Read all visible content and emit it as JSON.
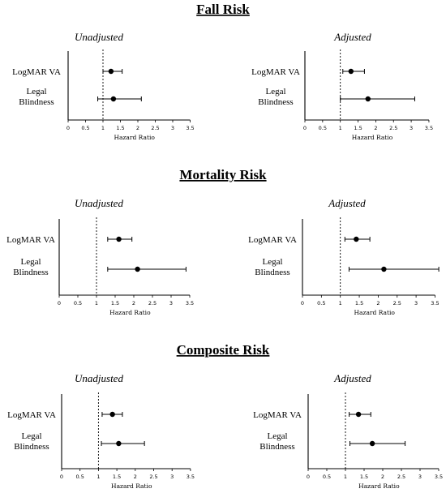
{
  "sections": [
    {
      "title": "Fall Risk"
    },
    {
      "title": "Mortality Risk"
    },
    {
      "title": "Composite Risk"
    }
  ],
  "chart_data": [
    {
      "type": "forest",
      "section": "Fall Risk",
      "title": "Unadjusted",
      "xlabel": "Hazard Ratio",
      "xlim": [
        0,
        3.5
      ],
      "ticks": [
        "0",
        "0.5",
        "1",
        "1.5",
        "2",
        "2.5",
        "3",
        "3.5"
      ],
      "reference_line": 1,
      "categories": [
        "LogMAR VA",
        "Legal Blindness"
      ],
      "estimates": [
        1.23,
        1.3
      ],
      "lower": [
        1.0,
        0.85
      ],
      "upper": [
        1.55,
        2.1
      ]
    },
    {
      "type": "forest",
      "section": "Fall Risk",
      "title": "Adjusted",
      "xlabel": "Hazard Ratio",
      "xlim": [
        0,
        3.5
      ],
      "ticks": [
        "0",
        "0.5",
        "1",
        "1.5",
        "2",
        "2.5",
        "3",
        "3.5"
      ],
      "reference_line": 1,
      "categories": [
        "LogMAR VA",
        "Legal Blindness"
      ],
      "estimates": [
        1.3,
        1.78
      ],
      "lower": [
        1.07,
        1.0
      ],
      "upper": [
        1.68,
        3.1
      ]
    },
    {
      "type": "forest",
      "section": "Mortality Risk",
      "title": "Unadjusted",
      "xlabel": "Hazard Ratio",
      "xlim": [
        0,
        3.5
      ],
      "ticks": [
        "0",
        "0.5",
        "1",
        "1.5",
        "2",
        "2.5",
        "3",
        "3.5"
      ],
      "reference_line": 1,
      "categories": [
        "LogMAR VA",
        "Legal Blindness"
      ],
      "estimates": [
        1.6,
        2.1
      ],
      "lower": [
        1.3,
        1.3
      ],
      "upper": [
        1.95,
        3.4
      ]
    },
    {
      "type": "forest",
      "section": "Mortality Risk",
      "title": "Adjusted",
      "xlabel": "Hazard Ratio",
      "xlim": [
        0,
        3.5
      ],
      "ticks": [
        "0",
        "0.5",
        "1",
        "1.5",
        "2",
        "2.5",
        "3",
        "3.5"
      ],
      "reference_line": 1,
      "categories": [
        "LogMAR VA",
        "Legal Blindness"
      ],
      "estimates": [
        1.42,
        2.15
      ],
      "lower": [
        1.12,
        1.23
      ],
      "upper": [
        1.78,
        3.6
      ]
    },
    {
      "type": "forest",
      "section": "Composite Risk",
      "title": "Unadjusted",
      "xlabel": "Hazard Ratio",
      "xlim": [
        0,
        3.5
      ],
      "ticks": [
        "0",
        "0.5",
        "1",
        "1.5",
        "2",
        "2.5",
        "3",
        "3.5"
      ],
      "reference_line": 1,
      "categories": [
        "LogMAR VA",
        "Legal Blindness"
      ],
      "estimates": [
        1.38,
        1.55
      ],
      "lower": [
        1.1,
        1.08
      ],
      "upper": [
        1.65,
        2.25
      ]
    },
    {
      "type": "forest",
      "section": "Composite Risk",
      "title": "Adjusted",
      "xlabel": "Hazard Ratio",
      "xlim": [
        0,
        3.5
      ],
      "ticks": [
        "0",
        "0.5",
        "1",
        "1.5",
        "2",
        "2.5",
        "3",
        "3.5"
      ],
      "reference_line": 1,
      "categories": [
        "LogMAR VA",
        "Legal Blindness"
      ],
      "estimates": [
        1.35,
        1.72
      ],
      "lower": [
        1.1,
        1.12
      ],
      "upper": [
        1.68,
        2.6
      ]
    }
  ]
}
